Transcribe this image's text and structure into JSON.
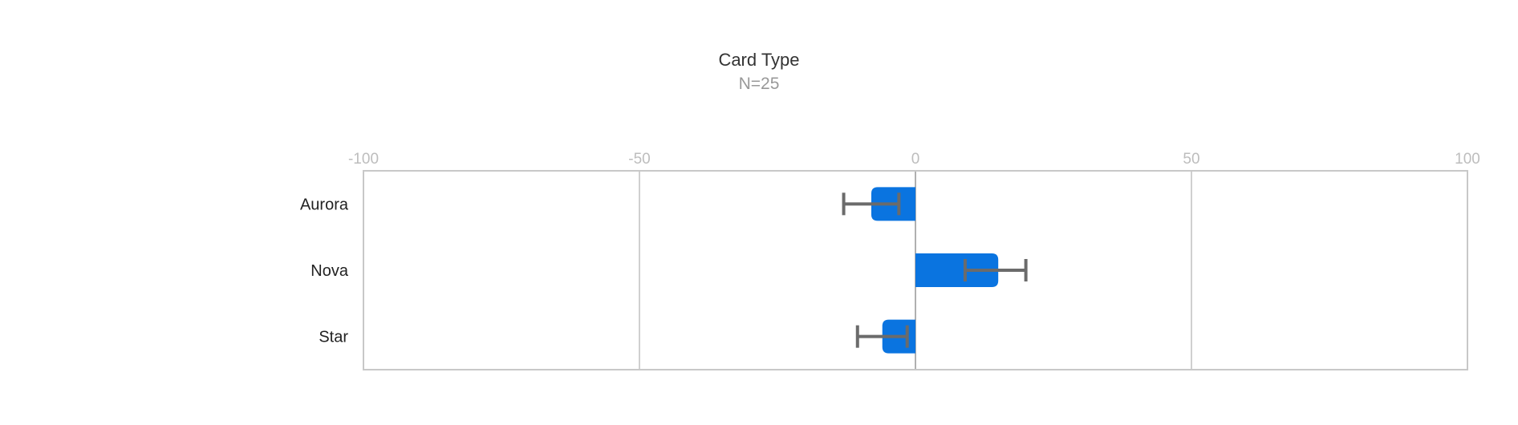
{
  "chart_data": {
    "type": "bar",
    "orientation": "horizontal",
    "title": "Card Type",
    "subtitle": "N=25",
    "categories": [
      "Aurora",
      "Nova",
      "Star"
    ],
    "values": [
      -8,
      15,
      -6
    ],
    "error_low": [
      -13,
      9,
      -10.5
    ],
    "error_high": [
      -3,
      20,
      -1.5
    ],
    "xlim": [
      -100,
      100
    ],
    "xticks": [
      -100,
      -50,
      0,
      50,
      100
    ],
    "tick_labels": [
      "-100",
      "-50",
      "0",
      "50",
      "100"
    ],
    "grid": true,
    "bar_color": "#0a74e0",
    "error_color": "#6b6b6b"
  }
}
